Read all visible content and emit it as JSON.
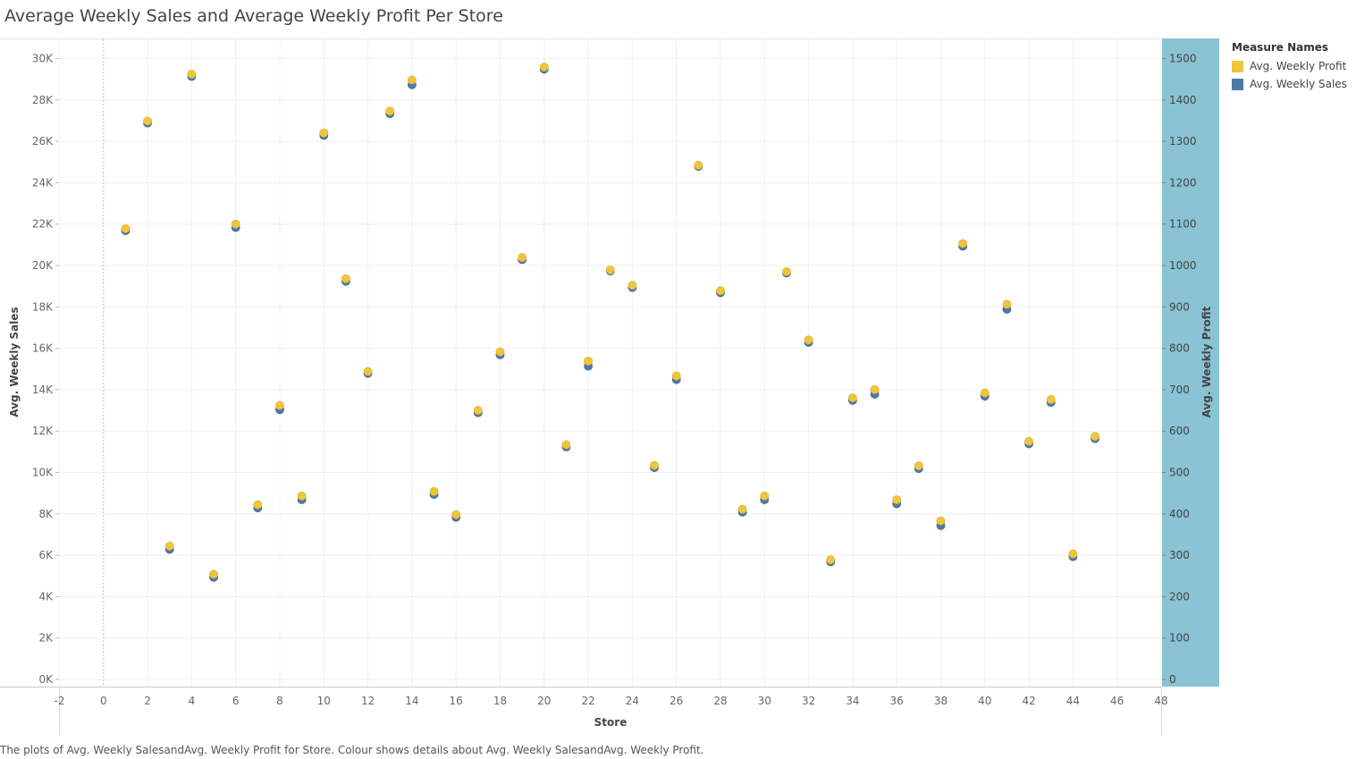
{
  "title": "Average Weekly Sales and Average Weekly Profit Per Store",
  "caption": "The plots of Avg. Weekly SalesandAvg. Weekly Profit for Store. Colour shows details about Avg. Weekly SalesandAvg. Weekly Profit.",
  "legend": {
    "title": "Measure Names",
    "items": [
      {
        "label": "Avg. Weekly Profit",
        "color": "#F0C53E"
      },
      {
        "label": "Avg. Weekly Sales",
        "color": "#4E79A7"
      }
    ]
  },
  "colors": {
    "profit": "#F0C53E",
    "sales": "#4E79A7",
    "profit_axis_band": "#8AC3D3"
  },
  "chart_data": {
    "type": "scatter",
    "title": "Average Weekly Sales and Average Weekly Profit Per Store",
    "xlabel": "Store",
    "ylabel": "Avg. Weekly Sales",
    "y2label": "Avg. Weekly Profit",
    "xlim": [
      -2,
      48
    ],
    "ylim": [
      0,
      31000
    ],
    "y2lim": [
      0,
      1550
    ],
    "x_ticks": [
      "-2",
      "0",
      "2",
      "4",
      "6",
      "8",
      "10",
      "12",
      "14",
      "16",
      "18",
      "20",
      "22",
      "24",
      "26",
      "28",
      "30",
      "32",
      "34",
      "36",
      "38",
      "40",
      "42",
      "44",
      "46",
      "48"
    ],
    "y_ticks": [
      "0K",
      "2K",
      "4K",
      "6K",
      "8K",
      "10K",
      "12K",
      "14K",
      "16K",
      "18K",
      "20K",
      "22K",
      "24K",
      "26K",
      "28K",
      "30K"
    ],
    "y2_ticks": [
      "0",
      "100",
      "200",
      "300",
      "400",
      "500",
      "600",
      "700",
      "800",
      "900",
      "1000",
      "1100",
      "1200",
      "1300",
      "1400",
      "1500"
    ],
    "grid": true,
    "legend_position": "top-right",
    "series": [
      {
        "name": "Avg. Weekly Sales",
        "axis": "left",
        "x": [
          1,
          2,
          3,
          4,
          5,
          6,
          7,
          8,
          9,
          10,
          11,
          12,
          13,
          14,
          15,
          16,
          17,
          18,
          19,
          20,
          21,
          22,
          23,
          24,
          25,
          26,
          27,
          28,
          29,
          30,
          31,
          32,
          33,
          34,
          35,
          36,
          37,
          38,
          39,
          40,
          41,
          42,
          43,
          44,
          45
        ],
        "y": [
          21750,
          26950,
          6350,
          29200,
          5000,
          21900,
          8350,
          13100,
          8750,
          26350,
          19300,
          14850,
          27400,
          28800,
          9000,
          7900,
          12950,
          15750,
          20350,
          29550,
          11300,
          15200,
          19800,
          19000,
          10300,
          14550,
          24850,
          18750,
          8150,
          8750,
          19700,
          16350,
          5750,
          13550,
          13850,
          8550,
          10250,
          7500,
          21000,
          13750,
          17950,
          11450,
          13450,
          6000,
          11700
        ]
      },
      {
        "name": "Avg. Weekly Profit",
        "axis": "right",
        "x": [
          1,
          2,
          3,
          4,
          5,
          6,
          7,
          8,
          9,
          10,
          11,
          12,
          13,
          14,
          15,
          16,
          17,
          18,
          19,
          20,
          21,
          22,
          23,
          24,
          25,
          26,
          27,
          28,
          29,
          30,
          31,
          32,
          33,
          34,
          35,
          36,
          37,
          38,
          39,
          40,
          41,
          42,
          43,
          44,
          45
        ],
        "y": [
          1087,
          1347,
          320,
          1460,
          252,
          1098,
          420,
          660,
          441,
          1318,
          966,
          742,
          1371,
          1446,
          452,
          396,
          648,
          789,
          1017,
          1477,
          565,
          767,
          987,
          950,
          515,
          731,
          1240,
          937,
          409,
          441,
          983,
          818,
          287,
          678,
          698,
          432,
          514,
          381,
          1051,
          690,
          904,
          573,
          674,
          301,
          585
        ]
      }
    ]
  }
}
